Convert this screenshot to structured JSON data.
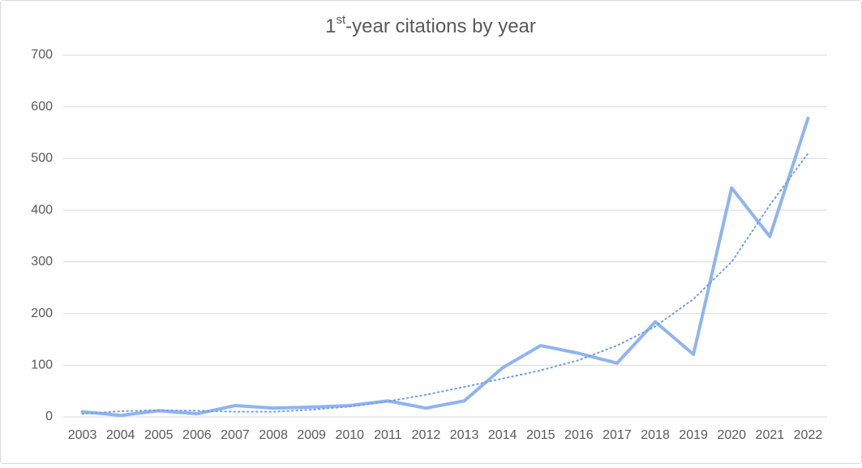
{
  "chart_data": {
    "type": "line",
    "title": [
      "1",
      "st",
      "-year citations by year"
    ],
    "categories": [
      "2003",
      "2004",
      "2005",
      "2006",
      "2007",
      "2008",
      "2009",
      "2010",
      "2011",
      "2012",
      "2013",
      "2014",
      "2015",
      "2016",
      "2017",
      "2018",
      "2019",
      "2020",
      "2021",
      "2022"
    ],
    "series": [
      {
        "color": "#8fb4f0",
        "values": [
          10,
          3,
          12,
          6,
          22,
          17,
          19,
          22,
          31,
          17,
          31,
          95,
          138,
          123,
          104,
          184,
          121,
          443,
          349,
          578
        ]
      }
    ],
    "trendline": {
      "color": "#6f9fe6",
      "values": [
        6,
        11,
        13,
        12,
        10,
        10,
        14,
        20,
        30,
        43,
        58,
        74,
        90,
        110,
        138,
        175,
        228,
        300,
        410,
        510
      ]
    },
    "ylim": [
      0,
      700
    ],
    "yticks": [
      0,
      100,
      200,
      300,
      400,
      500,
      600,
      700
    ],
    "grid": true
  }
}
